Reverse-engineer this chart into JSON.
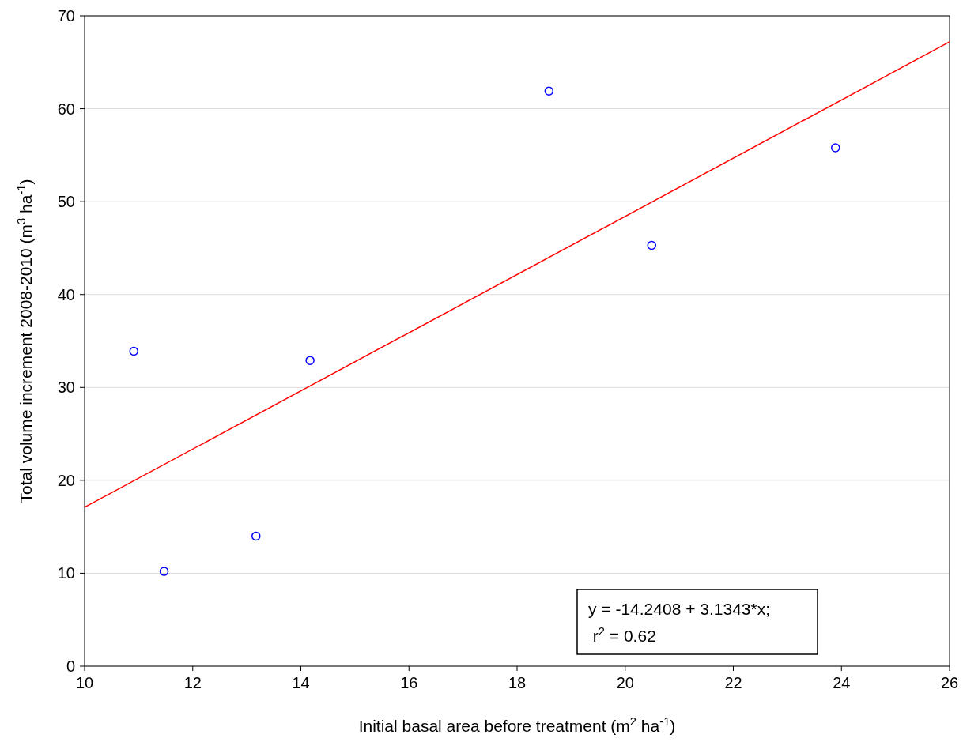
{
  "chart_data": {
    "type": "scatter",
    "xlabel": "Initial basal area before treatment (m$^{2}$ ha$^{-1}$)",
    "ylabel": "Total volume increment 2008-2010 (m$^{3}$ ha$^{-1}$)",
    "xlim": [
      10,
      26
    ],
    "xticks": [
      10,
      12,
      14,
      16,
      18,
      20,
      22,
      24,
      26
    ],
    "ylim": [
      0,
      70
    ],
    "yticks": [
      0,
      10,
      20,
      30,
      40,
      50,
      60,
      70
    ],
    "grid": "y",
    "series": [
      {
        "marker": "circle",
        "color": "#0000ff",
        "x": [
          10.91,
          11.47,
          13.17,
          14.17,
          18.59,
          20.49,
          23.89
        ],
        "values": [
          33.9,
          10.2,
          14.0,
          32.9,
          61.9,
          45.3,
          55.8
        ]
      },
      {
        "type": "line",
        "color": "#ff0000",
        "x": [
          10,
          26
        ],
        "values": [
          17.1,
          67.2
        ],
        "line_style": "solid"
      }
    ],
    "annotations": [
      "y = -14.2408 + 3.1343*x;",
      " r$^{2}$ = 0.62"
    ]
  }
}
